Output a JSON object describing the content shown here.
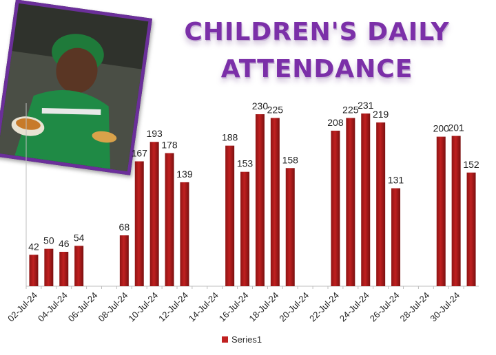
{
  "title": {
    "line1": "CHILDREN'S DAILY",
    "line2": "ATTENDANCE"
  },
  "legend": {
    "label": "Series1"
  },
  "colors": {
    "bar": "#c02020",
    "title": "#7b2fa8",
    "frame": "#6b2f9a"
  },
  "chart_data": {
    "type": "bar",
    "title": "CHILDREN'S DAILY ATTENDANCE",
    "categories": [
      "02-Jul-24",
      "03-Jul-24",
      "04-Jul-24",
      "05-Jul-24",
      "06-Jul-24",
      "07-Jul-24",
      "08-Jul-24",
      "09-Jul-24",
      "10-Jul-24",
      "11-Jul-24",
      "12-Jul-24",
      "13-Jul-24",
      "14-Jul-24",
      "15-Jul-24",
      "16-Jul-24",
      "17-Jul-24",
      "18-Jul-24",
      "19-Jul-24",
      "20-Jul-24",
      "21-Jul-24",
      "22-Jul-24",
      "23-Jul-24",
      "24-Jul-24",
      "25-Jul-24",
      "26-Jul-24",
      "27-Jul-24",
      "28-Jul-24",
      "29-Jul-24",
      "30-Jul-24",
      "31-Jul-24"
    ],
    "tick_labels": [
      "02-Jul-24",
      "04-Jul-24",
      "06-Jul-24",
      "08-Jul-24",
      "10-Jul-24",
      "12-Jul-24",
      "14-Jul-24",
      "16-Jul-24",
      "18-Jul-24",
      "20-Jul-24",
      "22-Jul-24",
      "24-Jul-24",
      "26-Jul-24",
      "28-Jul-24",
      "30-Jul-24"
    ],
    "series": [
      {
        "name": "Series1",
        "values": [
          42,
          50,
          46,
          54,
          null,
          null,
          68,
          167,
          193,
          178,
          139,
          null,
          null,
          188,
          153,
          230,
          225,
          158,
          null,
          null,
          208,
          225,
          231,
          219,
          131,
          null,
          null,
          200,
          201,
          152
        ]
      }
    ],
    "ylim": [
      0,
      250
    ],
    "grid": false,
    "legend_position": "bottom"
  }
}
